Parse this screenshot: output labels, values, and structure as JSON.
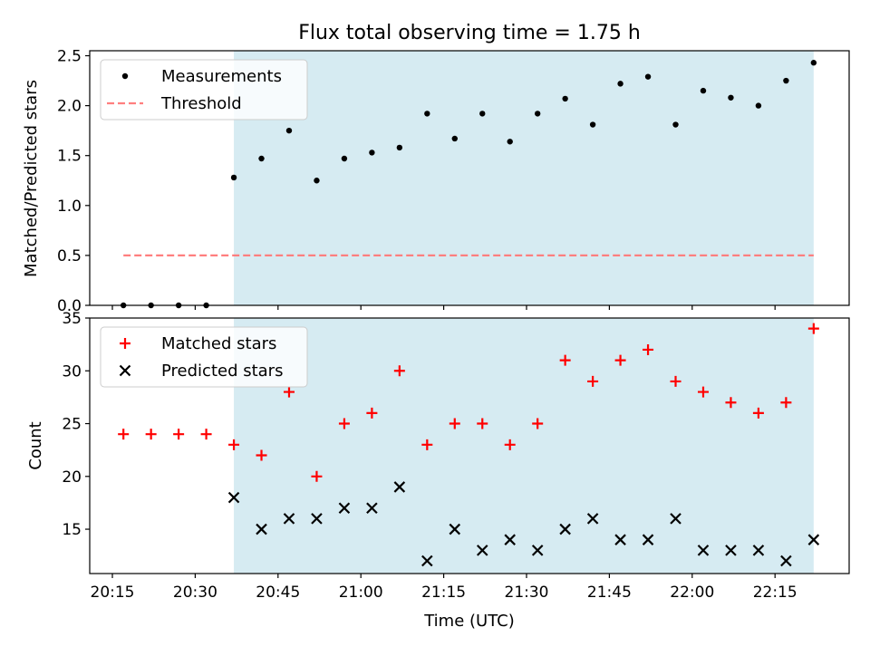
{
  "title": "Flux total observing time = 1.75 h",
  "colors": {
    "shade": "#add8e6",
    "measurement": "#000000",
    "threshold": "#ff7f7f",
    "matched": "#ff0000",
    "predicted": "#000000"
  },
  "chart_data": [
    {
      "type": "scatter",
      "title": "Flux total observing time = 1.75 h",
      "xlabel": "",
      "ylabel": "Matched/Predicted stars",
      "ylim": [
        0,
        2.55
      ],
      "y_ticks": [
        "0.0",
        "0.5",
        "1.0",
        "1.5",
        "2.0",
        "2.5"
      ],
      "legend": {
        "placement": "top-left",
        "entries": [
          "Measurements",
          "Threshold"
        ]
      },
      "shaded_interval": [
        "20:37",
        "22:22"
      ],
      "series": [
        {
          "name": "Measurements",
          "marker": "dot",
          "x": [
            "20:17",
            "20:22",
            "20:27",
            "20:32",
            "20:37",
            "20:42",
            "20:47",
            "20:52",
            "20:57",
            "21:02",
            "21:07",
            "21:12",
            "21:17",
            "21:22",
            "21:27",
            "21:32",
            "21:37",
            "21:42",
            "21:47",
            "21:52",
            "21:57",
            "22:02",
            "22:07",
            "22:12",
            "22:17",
            "22:22"
          ],
          "y": [
            0,
            0,
            0,
            0,
            1.28,
            1.47,
            1.75,
            1.25,
            1.47,
            1.53,
            1.58,
            1.92,
            1.67,
            1.92,
            1.64,
            1.92,
            2.07,
            1.81,
            2.22,
            2.29,
            1.81,
            2.15,
            2.08,
            2.0,
            2.25,
            2.43
          ]
        },
        {
          "name": "Threshold",
          "marker": "dashed-line",
          "x": [
            "20:17",
            "22:22"
          ],
          "y": [
            0.5,
            0.5
          ]
        }
      ]
    },
    {
      "type": "scatter",
      "xlabel": "Time (UTC)",
      "ylabel": "Count",
      "ylim": [
        10.8,
        35
      ],
      "y_ticks": [
        "15",
        "20",
        "25",
        "30",
        "35"
      ],
      "x_ticks": [
        "20:15",
        "20:30",
        "20:45",
        "21:00",
        "21:15",
        "21:30",
        "21:45",
        "22:00",
        "22:15"
      ],
      "legend": {
        "placement": "top-left",
        "entries": [
          "Matched stars",
          "Predicted stars"
        ]
      },
      "shaded_interval": [
        "20:37",
        "22:22"
      ],
      "series": [
        {
          "name": "Matched stars",
          "marker": "plus",
          "x": [
            "20:17",
            "20:22",
            "20:27",
            "20:32",
            "20:37",
            "20:42",
            "20:47",
            "20:52",
            "20:57",
            "21:02",
            "21:07",
            "21:12",
            "21:17",
            "21:22",
            "21:27",
            "21:32",
            "21:37",
            "21:42",
            "21:47",
            "21:52",
            "21:57",
            "22:02",
            "22:07",
            "22:12",
            "22:17",
            "22:22"
          ],
          "y": [
            24,
            24,
            24,
            24,
            23,
            22,
            28,
            20,
            25,
            26,
            30,
            23,
            25,
            25,
            23,
            25,
            31,
            29,
            31,
            32,
            29,
            28,
            27,
            26,
            27,
            34
          ]
        },
        {
          "name": "Predicted stars",
          "marker": "x",
          "x": [
            "20:37",
            "20:42",
            "20:47",
            "20:52",
            "20:57",
            "21:02",
            "21:07",
            "21:12",
            "21:17",
            "21:22",
            "21:27",
            "21:32",
            "21:37",
            "21:42",
            "21:47",
            "21:52",
            "21:57",
            "22:02",
            "22:07",
            "22:12",
            "22:17",
            "22:22"
          ],
          "y": [
            18,
            15,
            16,
            16,
            17,
            17,
            19,
            12,
            15,
            13,
            14,
            13,
            15,
            16,
            14,
            14,
            16,
            13,
            13,
            13,
            12,
            14
          ]
        }
      ]
    }
  ]
}
